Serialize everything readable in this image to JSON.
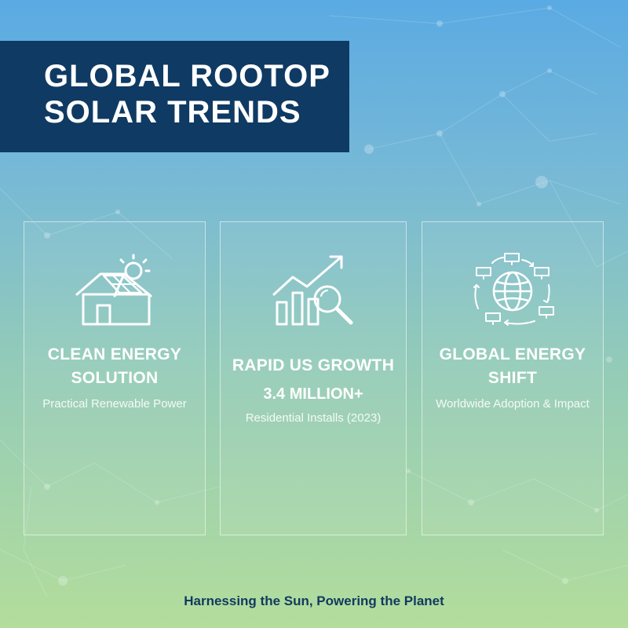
{
  "title": {
    "line1": "GLOBAL ROOTOP",
    "line2": "SOLAR TRENDS"
  },
  "cards": [
    {
      "icon": "solar-house-icon",
      "heading_line1": "CLEAN ENERGY",
      "heading_line2": "SOLUTION",
      "subtitle": "Practical Renewable Power"
    },
    {
      "icon": "growth-chart-magnifier-icon",
      "heading": "RAPID US GROWTH",
      "stat": "3.4 MILLION+",
      "subtitle": "Residential Installs (2023)"
    },
    {
      "icon": "globe-solar-panels-icon",
      "heading_line1": "GLOBAL ENERGY",
      "heading_line2": "SHIFT",
      "subtitle": "Worldwide Adoption & Impact"
    }
  ],
  "tagline": "Harnessing the Sun, Powering the Planet",
  "colors": {
    "banner": "#0f3a63",
    "tagline": "#12395f",
    "sky_top": "#5aaae3",
    "grass_bottom": "#b3dd9c"
  }
}
